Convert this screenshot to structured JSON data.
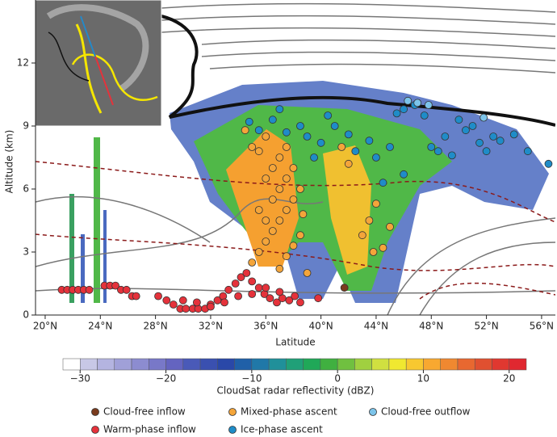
{
  "chart_data": {
    "type": "scatter",
    "x_label": "Latitude",
    "y_label": "Altitude (km)",
    "xlim": [
      19.3,
      57
    ],
    "ylim": [
      0,
      15
    ],
    "xticks": [
      {
        "value": 20,
        "label": "20°N"
      },
      {
        "value": 24,
        "label": "24°N"
      },
      {
        "value": 28,
        "label": "28°N"
      },
      {
        "value": 32,
        "label": "32°N"
      },
      {
        "value": 36,
        "label": "36°N"
      },
      {
        "value": 40,
        "label": "40°N"
      },
      {
        "value": 44,
        "label": "44°N"
      },
      {
        "value": 48,
        "label": "48°N"
      },
      {
        "value": 52,
        "label": "52°N"
      },
      {
        "value": 56,
        "label": "56°N"
      }
    ],
    "yticks": [
      0,
      3,
      6,
      9,
      12
    ],
    "legend": "bottom",
    "series": [
      {
        "name": "Cloud-free inflow",
        "color": "#7a3b1e",
        "x": [
          41.7
        ],
        "y": [
          1.3
        ]
      },
      {
        "name": "Warm-phase inflow",
        "color": "#e5323b",
        "x": [
          21.2,
          21.6,
          22.0,
          22.4,
          22.8,
          23.2,
          24.3,
          24.7,
          25.1,
          25.5,
          25.9,
          26.3,
          26.6,
          28.2,
          28.8,
          29.3,
          29.8,
          30.2,
          30.7,
          31.1,
          31.6,
          32.0,
          32.5,
          32.9,
          33.3,
          33.8,
          34.2,
          34.6,
          35.0,
          35.5,
          35.9,
          36.3,
          36.8,
          37.2,
          37.7,
          38.1,
          38.5,
          30.0,
          31.0,
          32.0,
          33.0,
          34.0,
          35.0,
          36.0,
          37.0,
          39.8
        ],
        "y": [
          1.2,
          1.2,
          1.2,
          1.2,
          1.2,
          1.2,
          1.4,
          1.4,
          1.4,
          1.2,
          1.2,
          0.9,
          0.9,
          0.9,
          0.7,
          0.5,
          0.3,
          0.3,
          0.3,
          0.3,
          0.3,
          0.5,
          0.7,
          0.9,
          1.2,
          1.5,
          1.8,
          2.0,
          1.6,
          1.3,
          1.0,
          0.8,
          0.6,
          0.8,
          0.7,
          0.9,
          0.6,
          0.7,
          0.6,
          0.4,
          0.6,
          0.9,
          1.0,
          1.3,
          1.1,
          0.8
        ]
      },
      {
        "name": "Mixed-phase ascent",
        "color": "#f4a53a",
        "x": [
          35.0,
          35.5,
          36.0,
          36.5,
          37.0,
          37.5,
          38.0,
          38.5,
          36.0,
          36.5,
          37.0,
          37.5,
          36.0,
          35.5,
          37.0,
          37.5,
          38.0,
          38.5,
          36.5,
          37.0,
          35.5,
          36.0,
          37.5,
          38.0,
          34.5,
          35.0,
          41.5,
          42.0,
          43.0,
          43.5,
          44.0,
          44.5,
          45.0,
          43.8,
          39.0,
          38.7
        ],
        "y": [
          2.5,
          3.0,
          3.5,
          4.0,
          4.5,
          5.0,
          5.5,
          6.0,
          6.5,
          7.0,
          7.5,
          8.0,
          8.5,
          7.8,
          2.2,
          2.8,
          3.3,
          3.8,
          5.5,
          6.0,
          5.0,
          4.5,
          6.5,
          7.0,
          8.8,
          8.0,
          8.0,
          7.2,
          3.8,
          4.5,
          5.3,
          3.2,
          4.2,
          3.0,
          2.0,
          4.8
        ]
      },
      {
        "name": "Ice-phase ascent",
        "color": "#1f8cc8",
        "x": [
          34.8,
          35.5,
          36.5,
          37.5,
          38.5,
          39.0,
          40.0,
          41.0,
          42.0,
          42.5,
          43.5,
          44.0,
          45.0,
          45.5,
          46.0,
          46.8,
          47.5,
          48.0,
          48.5,
          49.0,
          49.5,
          50.0,
          50.5,
          51.0,
          51.5,
          52.0,
          52.5,
          53.0,
          54.0,
          55.0,
          56.5,
          40.5,
          44.5,
          46.0,
          39.5,
          37.0
        ],
        "y": [
          9.2,
          8.8,
          9.3,
          8.7,
          9.0,
          8.5,
          8.2,
          9.0,
          8.6,
          7.8,
          8.3,
          7.5,
          8.0,
          9.6,
          9.8,
          10.0,
          9.5,
          8.0,
          7.8,
          8.5,
          7.6,
          9.3,
          8.8,
          9.0,
          8.2,
          7.8,
          8.5,
          8.3,
          8.6,
          7.8,
          7.2,
          9.5,
          6.3,
          6.7,
          7.5,
          9.8
        ]
      },
      {
        "name": "Cloud-free outflow",
        "color": "#7cc4ea",
        "x": [
          47.0,
          47.8,
          46.3,
          51.8
        ],
        "y": [
          10.1,
          10.0,
          10.2,
          9.4
        ]
      }
    ],
    "colorbar": {
      "label": "CloudSat radar reflectivity (dBZ)",
      "lim": [
        -32,
        22
      ],
      "ticks": [
        {
          "value": -30,
          "label": "−30"
        },
        {
          "value": -20,
          "label": "−20"
        },
        {
          "value": -10,
          "label": "−10"
        },
        0,
        10,
        20
      ],
      "colors": [
        "#ffffff",
        "#c8c8e6",
        "#b4b4e0",
        "#a0a0d8",
        "#8c8cd0",
        "#7878c8",
        "#6464c0",
        "#4a5ab8",
        "#3a50b0",
        "#2a48a8",
        "#2060a8",
        "#2078a8",
        "#20909a",
        "#20a078",
        "#20a858",
        "#40b040",
        "#70c040",
        "#a0d040",
        "#d0e040",
        "#f0e830",
        "#f8c830",
        "#f8a830",
        "#f08830",
        "#e86830",
        "#e05030",
        "#e03830",
        "#e02830"
      ]
    }
  }
}
